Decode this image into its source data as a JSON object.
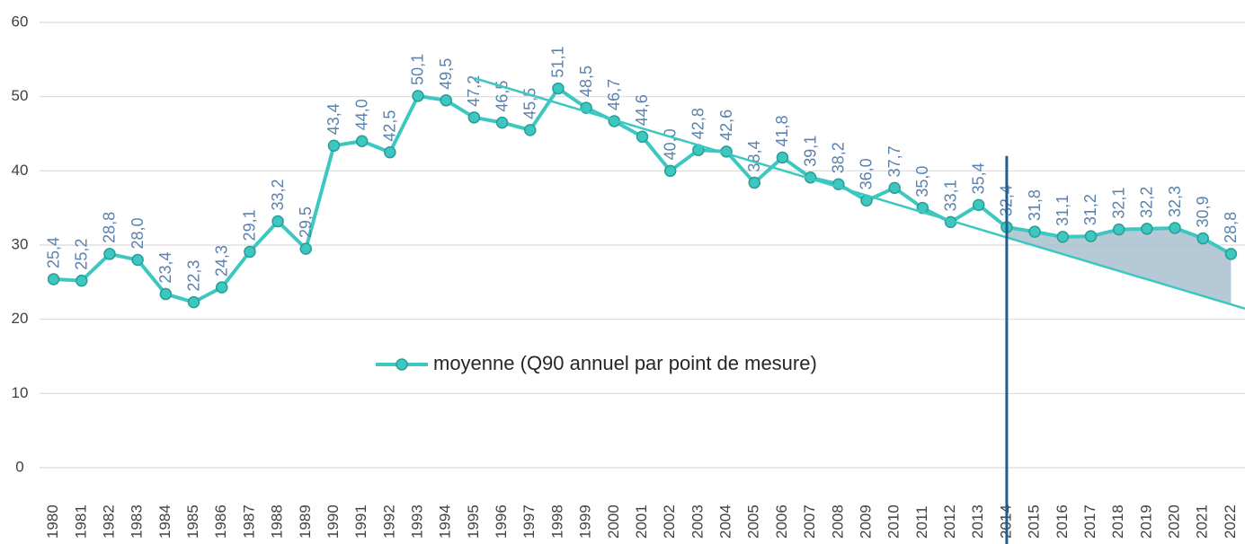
{
  "chart_data": {
    "type": "line",
    "categories": [
      "1980",
      "1981",
      "1982",
      "1983",
      "1984",
      "1985",
      "1986",
      "1987",
      "1988",
      "1989",
      "1990",
      "1991",
      "1992",
      "1993",
      "1994",
      "1995",
      "1996",
      "1997",
      "1998",
      "1999",
      "2000",
      "2001",
      "2002",
      "2003",
      "2004",
      "2005",
      "2006",
      "2007",
      "2008",
      "2009",
      "2010",
      "2011",
      "2012",
      "2013",
      "2014",
      "2015",
      "2016",
      "2017",
      "2018",
      "2019",
      "2020",
      "2021",
      "2022"
    ],
    "series": [
      {
        "name": "moyenne (Q90 annuel par point de mesure)",
        "color": "#3cc8c0",
        "values": [
          25.4,
          25.2,
          28.8,
          28.0,
          23.4,
          22.3,
          24.3,
          29.1,
          33.2,
          29.5,
          43.4,
          44.0,
          42.5,
          50.1,
          49.5,
          47.2,
          46.5,
          45.5,
          51.1,
          48.5,
          46.7,
          44.6,
          40.0,
          42.8,
          42.6,
          38.4,
          41.8,
          39.1,
          38.2,
          36.0,
          37.7,
          35.0,
          33.1,
          35.4,
          32.4,
          31.8,
          31.1,
          31.2,
          32.1,
          32.2,
          32.3,
          30.9,
          28.8
        ],
        "value_labels": [
          "25,4",
          "25,2",
          "28,8",
          "28,0",
          "23,4",
          "22,3",
          "24,3",
          "29,1",
          "33,2",
          "29,5",
          "43,4",
          "44,0",
          "42,5",
          "50,1",
          "49,5",
          "47,2",
          "46,5",
          "45,5",
          "51,1",
          "48,5",
          "46,7",
          "44,6",
          "40,0",
          "42,8",
          "42,6",
          "38,4",
          "41,8",
          "39,1",
          "38,2",
          "36,0",
          "37,7",
          "35,0",
          "33,1",
          "35,4",
          "32,4",
          "31,8",
          "31,1",
          "31,2",
          "32,1",
          "32,2",
          "32,3",
          "30,9",
          "28,8"
        ]
      }
    ],
    "trend_line": {
      "categories": [
        "1995",
        "2022"
      ],
      "values": [
        52.5,
        22.0
      ],
      "color": "#3cc8c0"
    },
    "marker_category": "2014",
    "ylim": [
      0,
      60
    ],
    "yticks": [
      0,
      10,
      20,
      30,
      40,
      50,
      60
    ],
    "grid": true,
    "legend": "center"
  }
}
